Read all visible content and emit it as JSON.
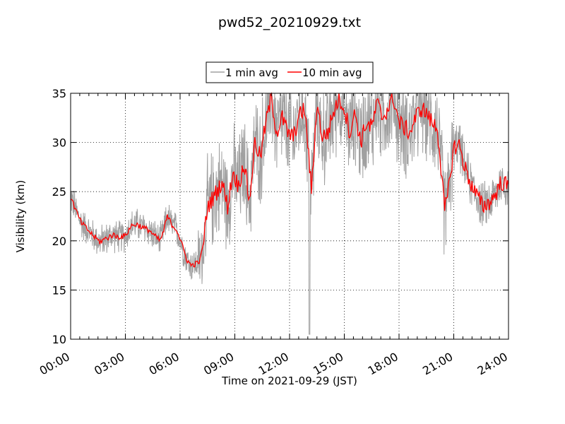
{
  "chart_data": {
    "type": "line",
    "title": "pwd52_20210929.txt",
    "xlabel": "Time on 2021-09-29 (JST)",
    "ylabel": "Visibility (km)",
    "xlim": [
      0,
      24
    ],
    "ylim": [
      10,
      35
    ],
    "x_ticks": [
      0,
      3,
      6,
      9,
      12,
      15,
      18,
      21,
      24
    ],
    "x_tick_labels": [
      "00:00",
      "03:00",
      "06:00",
      "09:00",
      "12:00",
      "15:00",
      "18:00",
      "21:00",
      "24:00"
    ],
    "y_ticks": [
      10,
      15,
      20,
      25,
      30,
      35
    ],
    "y_tick_labels": [
      "10",
      "15",
      "20",
      "25",
      "30",
      "35"
    ],
    "grid": true,
    "legend_position": "top-center",
    "series": [
      {
        "name": "1 min avg",
        "color": "#a0a0a0",
        "noise": "high-frequency scatter around the 10 min average; amplitude ~1.5 km before 07:00, ~4 km from 07:30 to 21:00, ~2 km after 21:00; clipped at 35 km; notable spike down to ~10.5 km near 13:05"
      },
      {
        "name": "10 min avg",
        "color": "#ff0000",
        "x": [
          0,
          0.3,
          0.6,
          1.0,
          1.3,
          1.6,
          2.0,
          2.3,
          2.6,
          3.0,
          3.3,
          3.6,
          4.0,
          4.3,
          4.6,
          4.9,
          5.1,
          5.3,
          5.6,
          5.8,
          6.0,
          6.2,
          6.4,
          6.6,
          6.9,
          7.1,
          7.3,
          7.5,
          7.7,
          8.0,
          8.3,
          8.6,
          8.9,
          9.2,
          9.5,
          9.8,
          10.1,
          10.4,
          10.7,
          11.0,
          11.3,
          11.6,
          11.9,
          12.2,
          12.5,
          12.8,
          13.0,
          13.2,
          13.5,
          13.8,
          14.1,
          14.4,
          14.7,
          15.0,
          15.3,
          15.6,
          15.9,
          16.2,
          16.5,
          16.8,
          17.1,
          17.4,
          17.7,
          18.0,
          18.3,
          18.6,
          18.9,
          19.2,
          19.5,
          19.8,
          20.1,
          20.3,
          20.5,
          20.7,
          21.0,
          21.3,
          21.6,
          22.0,
          22.3,
          22.6,
          23.0,
          23.3,
          23.6,
          24.0
        ],
        "y": [
          24.5,
          23.0,
          21.8,
          21.0,
          20.4,
          19.9,
          20.3,
          20.6,
          20.4,
          20.5,
          21.5,
          21.7,
          21.3,
          21.1,
          20.5,
          20.0,
          21.0,
          22.5,
          21.5,
          21.2,
          20.2,
          19.0,
          18.0,
          17.5,
          17.7,
          18.0,
          20.0,
          23.5,
          24.0,
          25.0,
          26.0,
          23.5,
          27.0,
          25.5,
          28.0,
          24.0,
          30.0,
          28.5,
          32.0,
          34.5,
          31.0,
          32.5,
          31.0,
          30.5,
          32.5,
          33.5,
          30.0,
          25.0,
          34.0,
          30.5,
          31.0,
          33.0,
          34.5,
          33.5,
          31.0,
          33.0,
          30.0,
          32.0,
          31.5,
          34.0,
          32.5,
          33.5,
          34.5,
          32.0,
          31.5,
          31.0,
          32.5,
          33.5,
          33.0,
          32.0,
          31.5,
          27.5,
          23.0,
          25.0,
          29.5,
          29.8,
          27.5,
          25.5,
          24.5,
          23.5,
          24.0,
          24.8,
          26.0,
          25.5
        ]
      }
    ]
  }
}
